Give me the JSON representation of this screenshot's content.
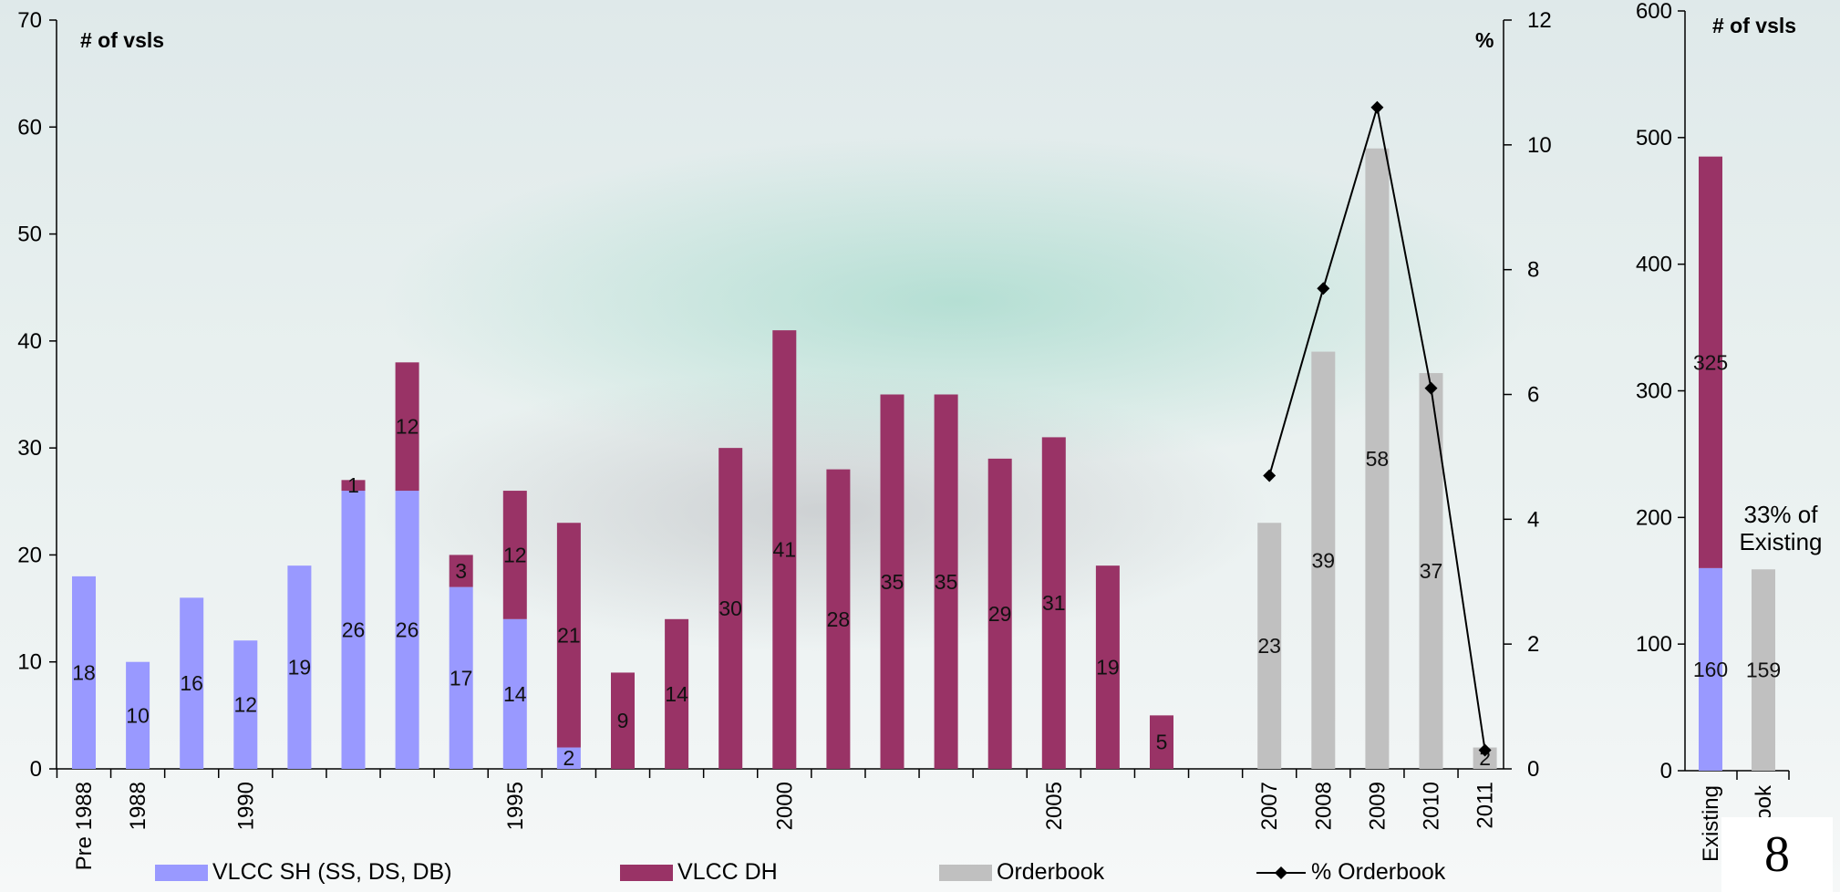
{
  "chart_data": [
    {
      "type": "bar",
      "stacked": true,
      "categories": [
        "Pre 1988",
        "1988",
        "",
        "1990",
        "",
        "",
        "",
        "",
        "1995",
        "",
        "",
        "",
        "",
        "2000",
        "",
        "",
        "",
        "",
        "2005",
        "",
        "",
        "",
        "2007",
        "2008",
        "2009",
        "2010",
        "2011"
      ],
      "series": [
        {
          "name": "VLCC SH (SS, DS, DB)",
          "color": "#9999ff",
          "values": [
            18,
            10,
            16,
            12,
            19,
            26,
            26,
            17,
            14,
            2,
            0,
            0,
            0,
            0,
            0,
            0,
            0,
            0,
            0,
            0,
            0,
            null,
            0,
            0,
            0,
            0,
            0
          ]
        },
        {
          "name": "VLCC DH",
          "color": "#993366",
          "values": [
            0,
            0,
            0,
            0,
            0,
            1,
            12,
            3,
            12,
            21,
            9,
            14,
            30,
            41,
            28,
            35,
            35,
            29,
            31,
            19,
            5,
            null,
            0,
            0,
            0,
            0,
            0
          ]
        },
        {
          "name": "Orderbook",
          "color": "#c0c0c0",
          "values": [
            0,
            0,
            0,
            0,
            0,
            0,
            0,
            0,
            0,
            0,
            0,
            0,
            0,
            0,
            0,
            0,
            0,
            0,
            0,
            0,
            0,
            null,
            23,
            39,
            58,
            37,
            2
          ]
        },
        {
          "name": "% Orderbook",
          "type": "line",
          "axis": "right",
          "color": "#000000",
          "values": [
            null,
            null,
            null,
            null,
            null,
            null,
            null,
            null,
            null,
            null,
            null,
            null,
            null,
            null,
            null,
            null,
            null,
            null,
            null,
            null,
            null,
            null,
            4.7,
            7.7,
            10.6,
            6.1,
            0.3
          ]
        }
      ],
      "data_labels": [
        "18",
        "10",
        "16",
        "12",
        "19",
        "26",
        "26",
        "17",
        "14",
        "2",
        "9",
        "14",
        "30",
        "41",
        "28",
        "35",
        "35",
        "29",
        "31",
        "19",
        "5",
        "23",
        "39",
        "58",
        "37",
        "2"
      ],
      "dh_labels": [
        "1",
        "12",
        "3",
        "12",
        "21"
      ],
      "yunit_left": "# of vsls",
      "yunit_right": "%",
      "ylim": [
        0,
        70
      ],
      "yticks": [
        "0",
        "10",
        "20",
        "30",
        "40",
        "50",
        "60",
        "70"
      ],
      "y2lim": [
        0,
        12
      ],
      "y2ticks": [
        "0",
        "2",
        "4",
        "6",
        "8",
        "10",
        "12"
      ]
    },
    {
      "type": "bar",
      "stacked": true,
      "categories": [
        "Existing",
        "Orderbook"
      ],
      "series": [
        {
          "name": "VLCC SH (SS, DS, DB)",
          "values": [
            160,
            0
          ]
        },
        {
          "name": "VLCC DH",
          "values": [
            325,
            0
          ]
        },
        {
          "name": "Orderbook",
          "values": [
            0,
            159
          ]
        }
      ],
      "data_labels": [
        "160",
        "325",
        "159"
      ],
      "yunit": "# of vsls",
      "ylim": [
        0,
        600
      ],
      "yticks": [
        "0",
        "100",
        "200",
        "300",
        "400",
        "500",
        "600"
      ],
      "annotation": [
        "33% of",
        "Existing"
      ]
    }
  ],
  "legend": {
    "sh": "VLCC SH (SS, DS, DB)",
    "dh": "VLCC DH",
    "ob": "Orderbook",
    "pct": "% Orderbook"
  },
  "colors": {
    "sh": "#9999ff",
    "dh": "#993366",
    "ob": "#c0c0c0",
    "line": "#000000"
  },
  "page_number": "8"
}
